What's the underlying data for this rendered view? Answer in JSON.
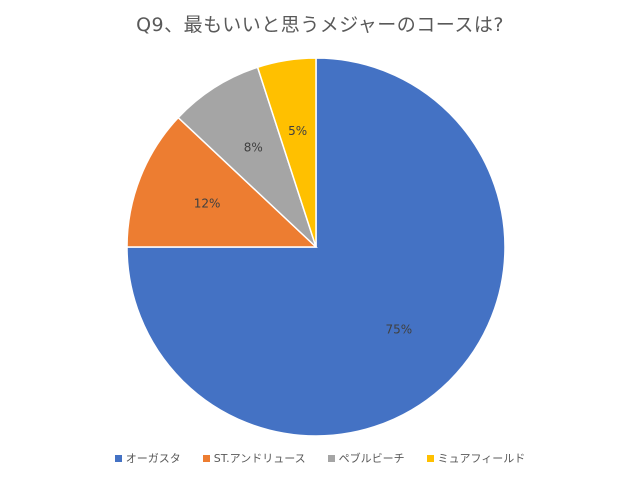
{
  "chart_data": {
    "type": "pie",
    "title": "Q9、最もいいと思うメジャーのコースは?",
    "categories": [
      "オーガスタ",
      "ST.アンドリュース",
      "ペブルビーチ",
      "ミュアフィールド"
    ],
    "values": [
      75,
      12,
      8,
      5
    ],
    "data_labels": [
      "75%",
      "12%",
      "8%",
      "5%"
    ],
    "colors": [
      "#4472C4",
      "#ED7D31",
      "#A5A5A5",
      "#FFC000"
    ],
    "start_angle_deg": 0,
    "direction": "clockwise",
    "legend_position": "bottom"
  }
}
